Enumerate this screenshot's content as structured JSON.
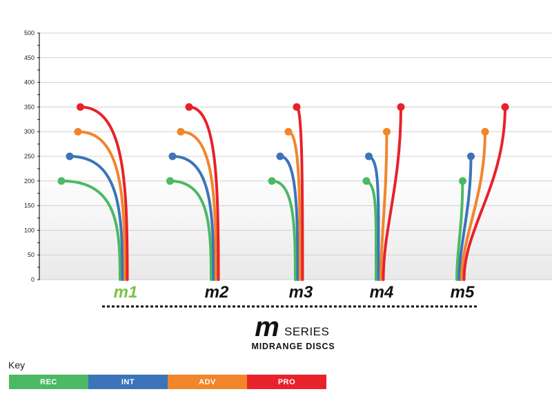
{
  "colors": {
    "REC": "#4cb964",
    "INT": "#3b74b9",
    "ADV": "#f2852a",
    "PRO": "#e8212b",
    "highlight": "#7dc242"
  },
  "chart_data": {
    "type": "line",
    "ylim": [
      0,
      500
    ],
    "yticks": [
      "0",
      "50",
      "100",
      "150",
      "200",
      "250",
      "300",
      "350",
      "400",
      "450",
      "500"
    ],
    "grid": true,
    "categories": [
      "M1",
      "M2",
      "M3",
      "M4",
      "M5"
    ],
    "highlighted_category": "M1",
    "series": [
      {
        "name": "REC",
        "start_heights": [
          200,
          200,
          200,
          200,
          200
        ],
        "fade": [
          -1.0,
          -0.7,
          -0.4,
          0.0,
          0.1
        ]
      },
      {
        "name": "INT",
        "start_heights": [
          250,
          250,
          250,
          250,
          250
        ],
        "fade": [
          -0.9,
          -0.7,
          -0.3,
          0.0,
          0.2
        ]
      },
      {
        "name": "ADV",
        "start_heights": [
          300,
          300,
          300,
          300,
          300
        ],
        "fade": [
          -0.8,
          -0.6,
          -0.2,
          0.1,
          0.4
        ]
      },
      {
        "name": "PRO",
        "start_heights": [
          350,
          350,
          350,
          350,
          350
        ],
        "fade": [
          -0.8,
          -0.5,
          -0.1,
          0.3,
          0.7
        ]
      }
    ]
  },
  "labels": {
    "m1": "m1",
    "m2": "m2",
    "m3": "m3",
    "m4": "m4",
    "m5": "m5"
  },
  "series_title": {
    "big": "m",
    "word": "SERIES",
    "subtitle": "MIDRANGE DISCS"
  },
  "key": {
    "title": "Key",
    "items": [
      {
        "label": "REC",
        "color": "#4cb964"
      },
      {
        "label": "INT",
        "color": "#3b74b9"
      },
      {
        "label": "ADV",
        "color": "#f2852a"
      },
      {
        "label": "PRO",
        "color": "#e8212b"
      }
    ]
  }
}
